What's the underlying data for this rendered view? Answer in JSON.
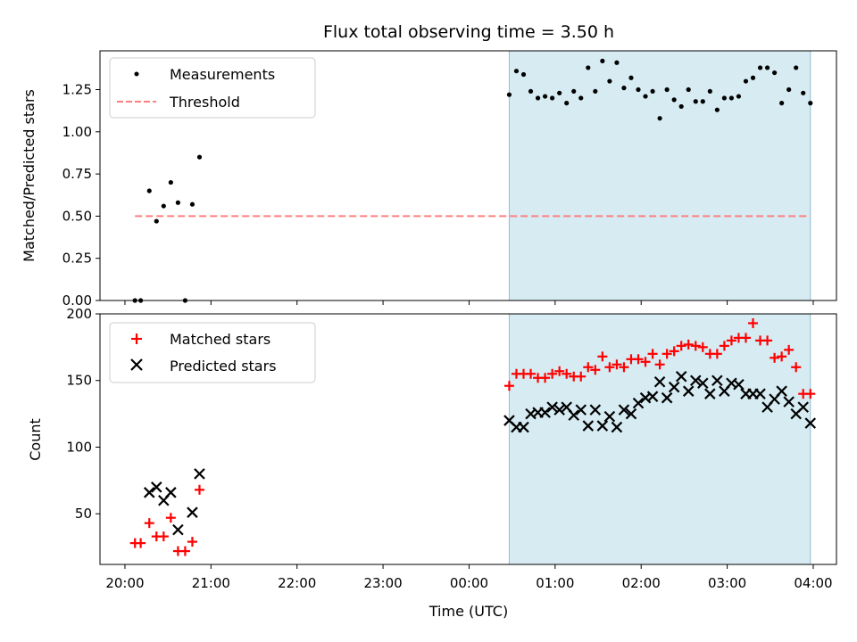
{
  "chart_data": [
    {
      "type": "scatter",
      "title": "Flux total observing time = 3.50 h",
      "xlabel": "",
      "ylabel": "Matched/Predicted stars",
      "ylim": [
        0,
        1.48
      ],
      "yticks": [
        "0.00",
        "0.25",
        "0.50",
        "0.75",
        "1.00",
        "1.25"
      ],
      "ytick_values": [
        0,
        0.25,
        0.5,
        0.75,
        1.0,
        1.25
      ],
      "xlim": [
        "20:00",
        "04:00"
      ],
      "highlight_span": [
        "00:28",
        "03:58"
      ],
      "highlight_color": "#add8e6",
      "legend_position": "top-left",
      "series": [
        {
          "name": "Measurements",
          "style": "dot",
          "color": "#000000",
          "x": [
            "20:07",
            "20:11",
            "20:17",
            "20:22",
            "20:27",
            "20:32",
            "20:37",
            "20:42",
            "20:47",
            "20:52",
            "00:28",
            "00:33",
            "00:38",
            "00:43",
            "00:48",
            "00:53",
            "00:58",
            "01:03",
            "01:08",
            "01:13",
            "01:18",
            "01:23",
            "01:28",
            "01:33",
            "01:38",
            "01:43",
            "01:48",
            "01:53",
            "01:58",
            "02:03",
            "02:08",
            "02:13",
            "02:18",
            "02:23",
            "02:28",
            "02:33",
            "02:38",
            "02:43",
            "02:48",
            "02:53",
            "02:58",
            "03:03",
            "03:08",
            "03:13",
            "03:18",
            "03:23",
            "03:28",
            "03:33",
            "03:38",
            "03:43",
            "03:48",
            "03:53",
            "03:58"
          ],
          "y": [
            0.0,
            0.0,
            0.65,
            0.47,
            0.56,
            0.7,
            0.58,
            0.0,
            0.57,
            0.85,
            1.22,
            1.36,
            1.34,
            1.24,
            1.2,
            1.21,
            1.2,
            1.23,
            1.17,
            1.24,
            1.2,
            1.38,
            1.24,
            1.42,
            1.3,
            1.41,
            1.26,
            1.32,
            1.25,
            1.21,
            1.24,
            1.08,
            1.25,
            1.19,
            1.15,
            1.25,
            1.18,
            1.18,
            1.24,
            1.13,
            1.2,
            1.2,
            1.21,
            1.3,
            1.32,
            1.38,
            1.38,
            1.35,
            1.17,
            1.25,
            1.38,
            1.23,
            1.17
          ]
        },
        {
          "name": "Threshold",
          "style": "dashed-line",
          "color": "#ff7f7f",
          "x": [
            "20:07",
            "03:58"
          ],
          "y": [
            0.5,
            0.5
          ]
        }
      ]
    },
    {
      "type": "scatter",
      "xlabel": "Time (UTC)",
      "ylabel": "Count",
      "ylim": [
        12,
        200
      ],
      "yticks": [
        "50",
        "100",
        "150",
        "200"
      ],
      "ytick_values": [
        50,
        100,
        150,
        200
      ],
      "xlim": [
        "20:00",
        "04:00"
      ],
      "xticks": [
        "20:00",
        "21:00",
        "22:00",
        "23:00",
        "00:00",
        "01:00",
        "02:00",
        "03:00",
        "04:00"
      ],
      "highlight_span": [
        "00:28",
        "03:58"
      ],
      "highlight_color": "#add8e6",
      "legend_position": "top-left",
      "series": [
        {
          "name": "Matched stars",
          "style": "plus",
          "color": "#ff0000",
          "x": [
            "20:07",
            "20:11",
            "20:17",
            "20:22",
            "20:27",
            "20:32",
            "20:37",
            "20:42",
            "20:47",
            "20:52",
            "00:28",
            "00:33",
            "00:38",
            "00:43",
            "00:48",
            "00:53",
            "00:58",
            "01:03",
            "01:08",
            "01:13",
            "01:18",
            "01:23",
            "01:28",
            "01:33",
            "01:38",
            "01:43",
            "01:48",
            "01:53",
            "01:58",
            "02:03",
            "02:08",
            "02:13",
            "02:18",
            "02:23",
            "02:28",
            "02:33",
            "02:38",
            "02:43",
            "02:48",
            "02:53",
            "02:58",
            "03:03",
            "03:08",
            "03:13",
            "03:18",
            "03:23",
            "03:28",
            "03:33",
            "03:38",
            "03:43",
            "03:48",
            "03:53",
            "03:58"
          ],
          "y": [
            28,
            28,
            43,
            33,
            33,
            47,
            22,
            22,
            29,
            68,
            146,
            155,
            155,
            155,
            152,
            152,
            155,
            157,
            155,
            153,
            153,
            160,
            158,
            168,
            160,
            162,
            160,
            166,
            166,
            164,
            170,
            162,
            170,
            172,
            176,
            177,
            176,
            175,
            170,
            170,
            176,
            180,
            182,
            182,
            193,
            180,
            180,
            167,
            168,
            173,
            160,
            140,
            140
          ]
        },
        {
          "name": "Predicted stars",
          "style": "x",
          "color": "#000000",
          "x": [
            "20:07",
            "20:11",
            "20:17",
            "20:22",
            "20:27",
            "20:32",
            "20:37",
            "20:42",
            "20:47",
            "20:52",
            "00:28",
            "00:33",
            "00:38",
            "00:43",
            "00:48",
            "00:53",
            "00:58",
            "01:03",
            "01:08",
            "01:13",
            "01:18",
            "01:23",
            "01:28",
            "01:33",
            "01:38",
            "01:43",
            "01:48",
            "01:53",
            "01:58",
            "02:03",
            "02:08",
            "02:13",
            "02:18",
            "02:23",
            "02:28",
            "02:33",
            "02:38",
            "02:43",
            "02:48",
            "02:53",
            "02:58",
            "03:03",
            "03:08",
            "03:13",
            "03:18",
            "03:23",
            "03:28",
            "03:33",
            "03:38",
            "03:43",
            "03:48",
            "03:53",
            "03:58"
          ],
          "y": [
            null,
            null,
            66,
            70,
            60,
            66,
            38,
            null,
            51,
            80,
            120,
            115,
            115,
            125,
            126,
            126,
            130,
            128,
            130,
            124,
            128,
            116,
            128,
            116,
            123,
            115,
            128,
            125,
            133,
            137,
            138,
            149,
            137,
            145,
            153,
            142,
            150,
            148,
            140,
            150,
            142,
            148,
            147,
            140,
            140,
            140,
            130,
            136,
            142,
            134,
            125,
            130,
            118
          ]
        }
      ]
    }
  ]
}
